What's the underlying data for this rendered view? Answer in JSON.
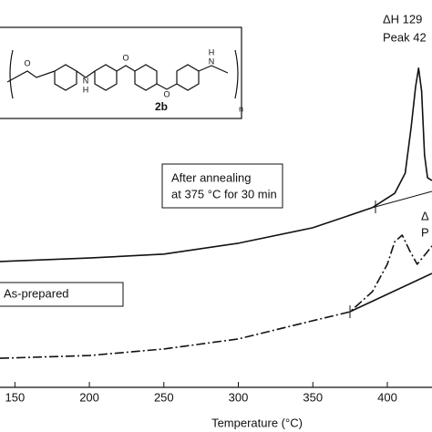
{
  "chart_data": {
    "type": "line",
    "x_label": "Temperature (°C)",
    "xlim": [
      140,
      430
    ],
    "ylim": [
      0,
      100
    ],
    "xticks": [
      150,
      200,
      250,
      300,
      350,
      400
    ],
    "annotations": [
      "ΔH 129",
      "Peak 42",
      "After annealing",
      "at 375 °C for 30 min",
      "As-prepared",
      "Δ",
      "P"
    ],
    "structure_labels": [
      "2b",
      "n",
      "O",
      "O",
      "O",
      "N",
      "H",
      "N",
      "H"
    ],
    "series": [
      {
        "color": "#111111",
        "style": "solid",
        "x": [
          140,
          200,
          250,
          300,
          350,
          390,
          405,
          412,
          416,
          419,
          421,
          423,
          425,
          427,
          430
        ],
        "values": [
          32.5,
          33.4,
          34.4,
          37.2,
          41.2,
          46.4,
          50.1,
          55.3,
          67.1,
          77.6,
          82.4,
          76.5,
          60,
          54.1,
          53.4
        ]
      },
      {
        "color": "#111111",
        "style": "dashdot",
        "x": [
          140,
          200,
          250,
          300,
          350,
          375,
          390,
          400,
          405,
          410,
          415,
          420,
          425,
          430
        ],
        "values": [
          7.5,
          8.2,
          9.9,
          12.5,
          17.2,
          19.5,
          24.7,
          31.8,
          37.6,
          39.3,
          35.3,
          31.8,
          34.1,
          36.5
        ]
      }
    ]
  }
}
